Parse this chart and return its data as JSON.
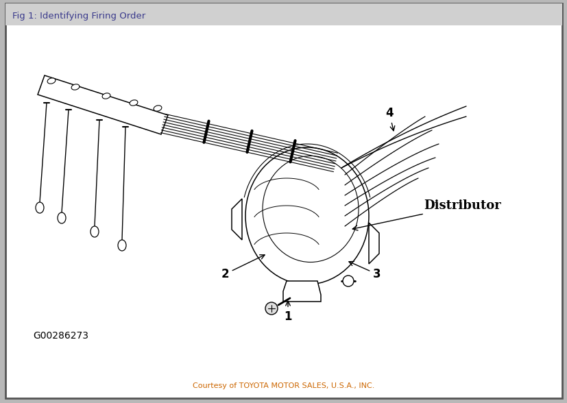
{
  "title": "Fig 1: Identifying Firing Order",
  "footer": "Courtesy of TOYOTA MOTOR SALES, U.S.A., INC.",
  "figure_code": "G00286273",
  "label_distributor": "Distributor",
  "label_1": "1",
  "label_2": "2",
  "label_3": "3",
  "label_4": "4",
  "bg_color": "#ffffff",
  "outer_bg": "#b8b8b8",
  "title_bg": "#d0d0d0",
  "title_color": "#3a3a8c",
  "footer_color": "#cc6600",
  "border_color": "#555555",
  "lc": "#000000",
  "figsize": [
    8.28,
    5.88
  ],
  "dpi": 100
}
